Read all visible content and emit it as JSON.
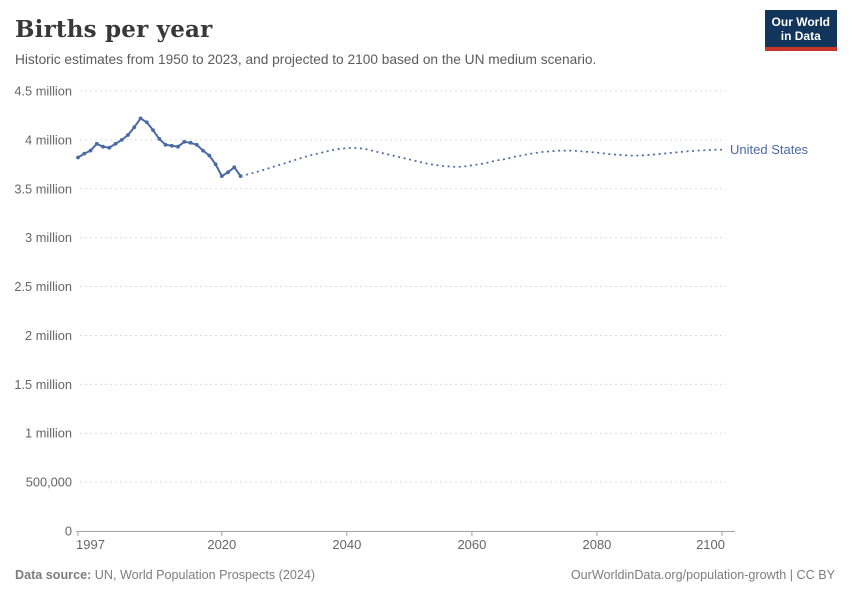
{
  "header": {
    "title": "Births per year",
    "subtitle": "Historic estimates from 1950 to 2023, and projected to 2100 based on the UN medium scenario."
  },
  "logo": {
    "line1": "Our World",
    "line2": "in Data",
    "bg_color": "#12355b",
    "stripe_color": "#cb342b"
  },
  "chart_data": {
    "type": "line",
    "title": "Births per year",
    "entity": "United States",
    "entity_label_color": "#4a6aa5",
    "value_unit": "million births per year",
    "xlim": [
      1997,
      2100
    ],
    "ylim": [
      0,
      4.5
    ],
    "grid": true,
    "legend_position": "right-of-line-end",
    "x_ticks": [
      1997,
      2020,
      2040,
      2060,
      2080,
      2100
    ],
    "y_ticks": [
      {
        "value": 0,
        "label": "0"
      },
      {
        "value": 0.5,
        "label": "500,000"
      },
      {
        "value": 1,
        "label": "1 million"
      },
      {
        "value": 1.5,
        "label": "1.5 million"
      },
      {
        "value": 2,
        "label": "2 million"
      },
      {
        "value": 2.5,
        "label": "2.5 million"
      },
      {
        "value": 3,
        "label": "3 million"
      },
      {
        "value": 3.5,
        "label": "3.5 million"
      },
      {
        "value": 4,
        "label": "4 million"
      },
      {
        "value": 4.5,
        "label": "4.5 million"
      }
    ],
    "series": [
      {
        "name": "United States — historic estimates",
        "style": "solid",
        "markers": true,
        "color": "#4a6aa5",
        "x": [
          1997,
          1998,
          1999,
          2000,
          2001,
          2002,
          2003,
          2004,
          2005,
          2006,
          2007,
          2008,
          2009,
          2010,
          2011,
          2012,
          2013,
          2014,
          2015,
          2016,
          2017,
          2018,
          2019,
          2020,
          2021,
          2022,
          2023
        ],
        "values": [
          3.82,
          3.86,
          3.89,
          3.96,
          3.93,
          3.92,
          3.96,
          4.0,
          4.05,
          4.13,
          4.22,
          4.18,
          4.1,
          4.01,
          3.95,
          3.94,
          3.93,
          3.98,
          3.97,
          3.95,
          3.89,
          3.84,
          3.75,
          3.63,
          3.67,
          3.72,
          3.63
        ]
      },
      {
        "name": "United States — UN medium projection",
        "style": "dotted",
        "markers": false,
        "color": "#4a6aa5",
        "x": [
          2023,
          2024,
          2025,
          2026,
          2027,
          2028,
          2029,
          2030,
          2031,
          2032,
          2033,
          2034,
          2035,
          2036,
          2037,
          2038,
          2039,
          2040,
          2041,
          2042,
          2043,
          2044,
          2045,
          2046,
          2047,
          2048,
          2049,
          2050,
          2051,
          2052,
          2053,
          2054,
          2055,
          2056,
          2057,
          2058,
          2059,
          2060,
          2061,
          2062,
          2063,
          2064,
          2065,
          2066,
          2067,
          2068,
          2069,
          2070,
          2071,
          2072,
          2073,
          2074,
          2075,
          2076,
          2077,
          2078,
          2079,
          2080,
          2081,
          2082,
          2083,
          2084,
          2085,
          2086,
          2087,
          2088,
          2089,
          2090,
          2091,
          2092,
          2093,
          2094,
          2095,
          2096,
          2097,
          2098,
          2099,
          2100
        ],
        "values": [
          3.63,
          3.645,
          3.66,
          3.68,
          3.7,
          3.72,
          3.74,
          3.76,
          3.78,
          3.8,
          3.82,
          3.84,
          3.855,
          3.87,
          3.885,
          3.9,
          3.91,
          3.915,
          3.92,
          3.915,
          3.905,
          3.89,
          3.875,
          3.86,
          3.845,
          3.83,
          3.815,
          3.8,
          3.785,
          3.77,
          3.755,
          3.745,
          3.735,
          3.73,
          3.725,
          3.725,
          3.73,
          3.74,
          3.75,
          3.76,
          3.775,
          3.79,
          3.8,
          3.815,
          3.83,
          3.84,
          3.855,
          3.865,
          3.875,
          3.88,
          3.885,
          3.89,
          3.89,
          3.89,
          3.885,
          3.88,
          3.875,
          3.87,
          3.862,
          3.855,
          3.85,
          3.845,
          3.84,
          3.838,
          3.84,
          3.845,
          3.85,
          3.856,
          3.862,
          3.868,
          3.874,
          3.88,
          3.885,
          3.89,
          3.894,
          3.897,
          3.9,
          3.9
        ]
      }
    ],
    "colors": {
      "gridline": "#dcdcdc",
      "axis": "#a3a3a3",
      "tick_label": "#666666"
    }
  },
  "footer": {
    "source_label": "Data source:",
    "source_text": " UN, World Population Prospects (2024)",
    "credit": "OurWorldinData.org/population-growth | CC BY"
  }
}
